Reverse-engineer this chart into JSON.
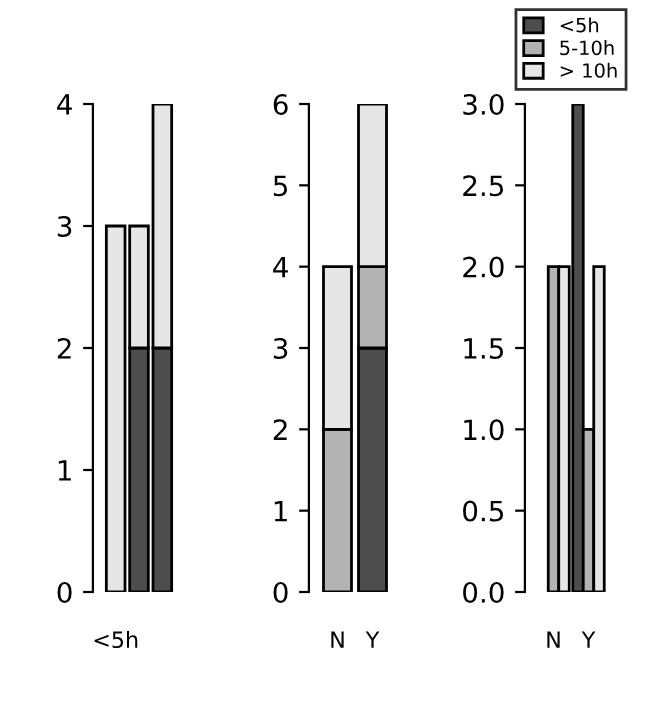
{
  "chart_data": [
    {
      "type": "bar",
      "stacked": true,
      "categories": [
        "<5h",
        null,
        null
      ],
      "series": [
        {
          "color": "#4d4d4d",
          "values": [
            0,
            2,
            2
          ]
        },
        {
          "color": "#e6e6e6",
          "values": [
            3,
            1,
            2
          ]
        }
      ],
      "ylim": [
        0,
        4
      ],
      "yticks": [
        0,
        1,
        2,
        3,
        4
      ]
    },
    {
      "type": "bar",
      "stacked": true,
      "categories": [
        "N",
        "Y"
      ],
      "series": [
        {
          "color": "#4d4d4d",
          "values": [
            0,
            3
          ]
        },
        {
          "color": "#b3b3b3",
          "values": [
            2,
            1
          ]
        },
        {
          "color": "#e6e6e6",
          "values": [
            2,
            2
          ]
        }
      ],
      "ylim": [
        0,
        6
      ],
      "yticks": [
        0,
        1,
        2,
        3,
        4,
        5,
        6
      ]
    },
    {
      "type": "bar",
      "categories": [
        "N",
        "Y"
      ],
      "legend": "top",
      "series": [
        {
          "name": "<5h",
          "color": "#4d4d4d",
          "values": [
            0,
            3
          ]
        },
        {
          "name": "5-10h",
          "color": "#b3b3b3",
          "values": [
            2,
            1
          ]
        },
        {
          "name": "> 10h",
          "color": "#e6e6e6",
          "values": [
            2,
            2
          ]
        }
      ],
      "ylim": [
        0,
        3
      ],
      "yticks": [
        {
          "value": 0,
          "label": "0.0"
        },
        {
          "value": 0.5,
          "label": "0.5"
        },
        {
          "value": 1,
          "label": "1.0"
        },
        {
          "value": 1.5,
          "label": "1.5"
        },
        {
          "value": 2,
          "label": "2.0"
        },
        {
          "value": 2.5,
          "label": "2.5"
        },
        {
          "value": 3,
          "label": "3.0"
        }
      ]
    }
  ]
}
